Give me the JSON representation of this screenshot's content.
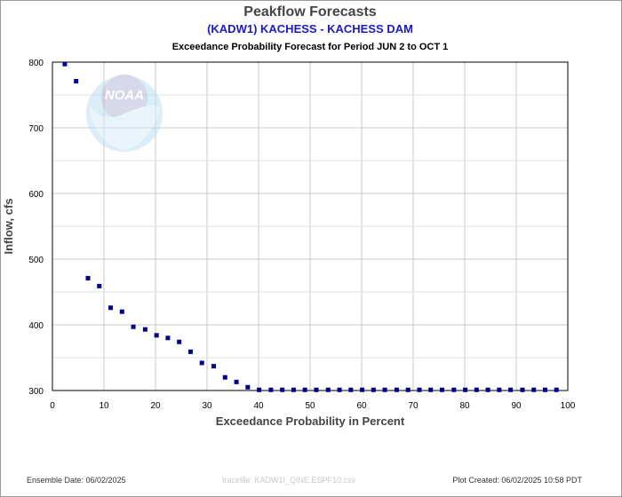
{
  "header": {
    "title": "Peakflow Forecasts",
    "subtitle": "(KADW1) KACHESS - KACHESS DAM",
    "period": "Exceedance Probability Forecast for Period JUN 2 to OCT 1"
  },
  "watermark": {
    "logo_text": "NOAA"
  },
  "footer": {
    "ensemble_date": "Ensemble Date: 06/02/2025",
    "tracefile": "tracefile: KADW1I_QINE.ESPF10.csv",
    "plot_created": "Plot Created: 06/02/2025 10:58 PDT"
  },
  "chart_data": {
    "type": "scatter",
    "xlabel": "Exceedance Probability in Percent",
    "ylabel": "Inflow, cfs",
    "xlim": [
      0,
      100
    ],
    "ylim": [
      300,
      800
    ],
    "xticks": [
      0,
      10,
      20,
      30,
      40,
      50,
      60,
      70,
      80,
      90,
      100
    ],
    "yticks": [
      300,
      400,
      500,
      600,
      700,
      800
    ],
    "grid": true,
    "marker_color": "#00008b",
    "points": [
      {
        "x": 2.4,
        "y": 797
      },
      {
        "x": 4.6,
        "y": 771
      },
      {
        "x": 6.9,
        "y": 471
      },
      {
        "x": 9.1,
        "y": 459
      },
      {
        "x": 11.3,
        "y": 426
      },
      {
        "x": 13.5,
        "y": 420
      },
      {
        "x": 15.7,
        "y": 397
      },
      {
        "x": 18.0,
        "y": 393
      },
      {
        "x": 20.2,
        "y": 384
      },
      {
        "x": 22.4,
        "y": 380
      },
      {
        "x": 24.6,
        "y": 374
      },
      {
        "x": 26.8,
        "y": 359
      },
      {
        "x": 29.0,
        "y": 342
      },
      {
        "x": 31.3,
        "y": 337
      },
      {
        "x": 33.5,
        "y": 320
      },
      {
        "x": 35.7,
        "y": 313
      },
      {
        "x": 37.9,
        "y": 305
      },
      {
        "x": 40.1,
        "y": 301
      },
      {
        "x": 42.4,
        "y": 301
      },
      {
        "x": 44.6,
        "y": 301
      },
      {
        "x": 46.8,
        "y": 301
      },
      {
        "x": 49.0,
        "y": 301
      },
      {
        "x": 51.2,
        "y": 301
      },
      {
        "x": 53.5,
        "y": 301
      },
      {
        "x": 55.7,
        "y": 301
      },
      {
        "x": 57.9,
        "y": 301
      },
      {
        "x": 60.1,
        "y": 301
      },
      {
        "x": 62.3,
        "y": 301
      },
      {
        "x": 64.5,
        "y": 301
      },
      {
        "x": 66.8,
        "y": 301
      },
      {
        "x": 69.0,
        "y": 301
      },
      {
        "x": 71.2,
        "y": 301
      },
      {
        "x": 73.4,
        "y": 301
      },
      {
        "x": 75.6,
        "y": 301
      },
      {
        "x": 77.9,
        "y": 301
      },
      {
        "x": 80.1,
        "y": 301
      },
      {
        "x": 82.3,
        "y": 301
      },
      {
        "x": 84.5,
        "y": 301
      },
      {
        "x": 86.7,
        "y": 301
      },
      {
        "x": 88.9,
        "y": 301
      },
      {
        "x": 91.2,
        "y": 301
      },
      {
        "x": 93.4,
        "y": 301
      },
      {
        "x": 95.6,
        "y": 301
      },
      {
        "x": 97.8,
        "y": 301
      }
    ]
  }
}
